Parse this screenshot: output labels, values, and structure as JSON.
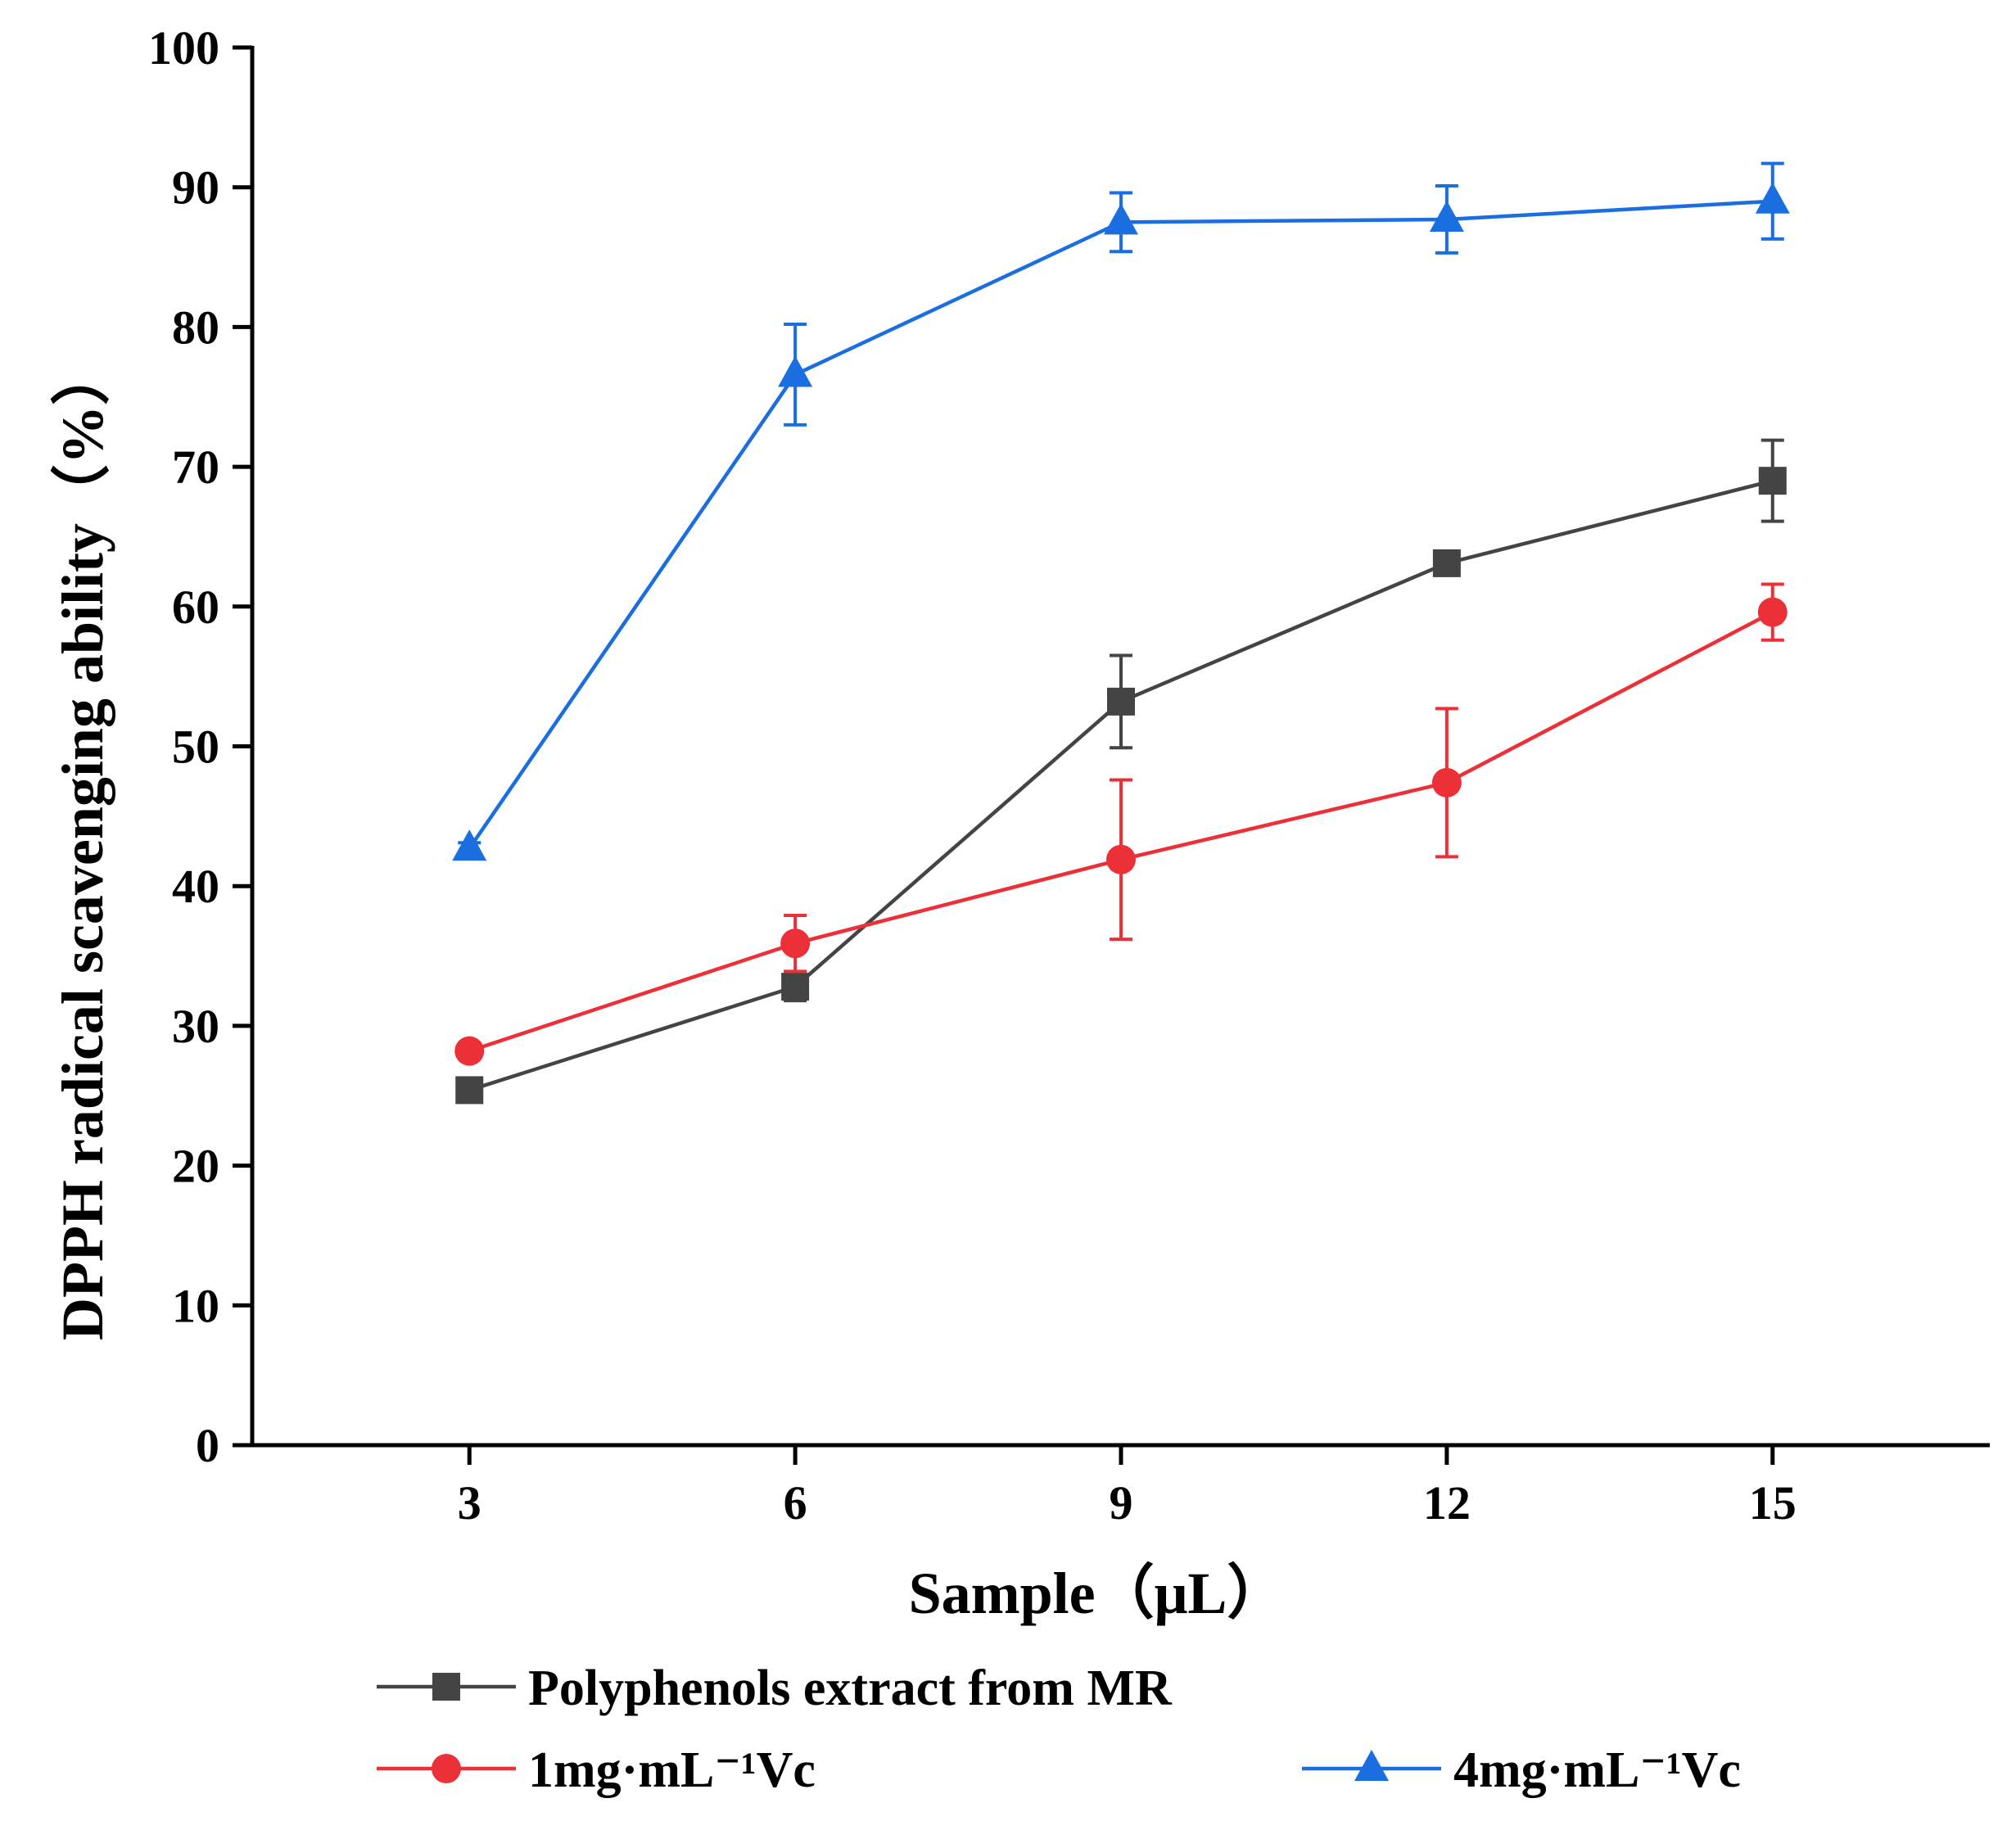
{
  "chart_data": {
    "type": "line",
    "title": "",
    "xlabel": "Sample（μL）",
    "ylabel": "DPPH radical scavenging ability（%）",
    "x": [
      3,
      6,
      9,
      12,
      15
    ],
    "x_tick_labels": [
      "3",
      "6",
      "9",
      "12",
      "15"
    ],
    "y_tick_labels": [
      "0",
      "10",
      "20",
      "30",
      "40",
      "50",
      "60",
      "70",
      "80",
      "90",
      "100"
    ],
    "xlim": [
      1,
      17
    ],
    "ylim": [
      0,
      100
    ],
    "grid": false,
    "legend_position": "bottom",
    "series": [
      {
        "name": "Polyphenols extract from MR",
        "color": "#444444",
        "marker": "square",
        "values": [
          25.4,
          32.8,
          53.2,
          63.1,
          69.0
        ],
        "errors": [
          0.6,
          1.0,
          3.3,
          0.7,
          2.9
        ]
      },
      {
        "name": "1mg·mL⁻¹Vc",
        "color": "#ec3037",
        "marker": "circle",
        "values": [
          28.2,
          35.9,
          41.9,
          47.4,
          59.6
        ],
        "errors": [
          0.5,
          2.0,
          5.7,
          5.3,
          2.0
        ]
      },
      {
        "name": "4mg·mL⁻¹Vc",
        "color": "#1a6ee0",
        "marker": "triangle",
        "values": [
          42.7,
          76.6,
          87.5,
          87.7,
          89.0
        ],
        "errors": [
          0.4,
          3.6,
          2.1,
          2.4,
          2.7
        ]
      }
    ]
  }
}
